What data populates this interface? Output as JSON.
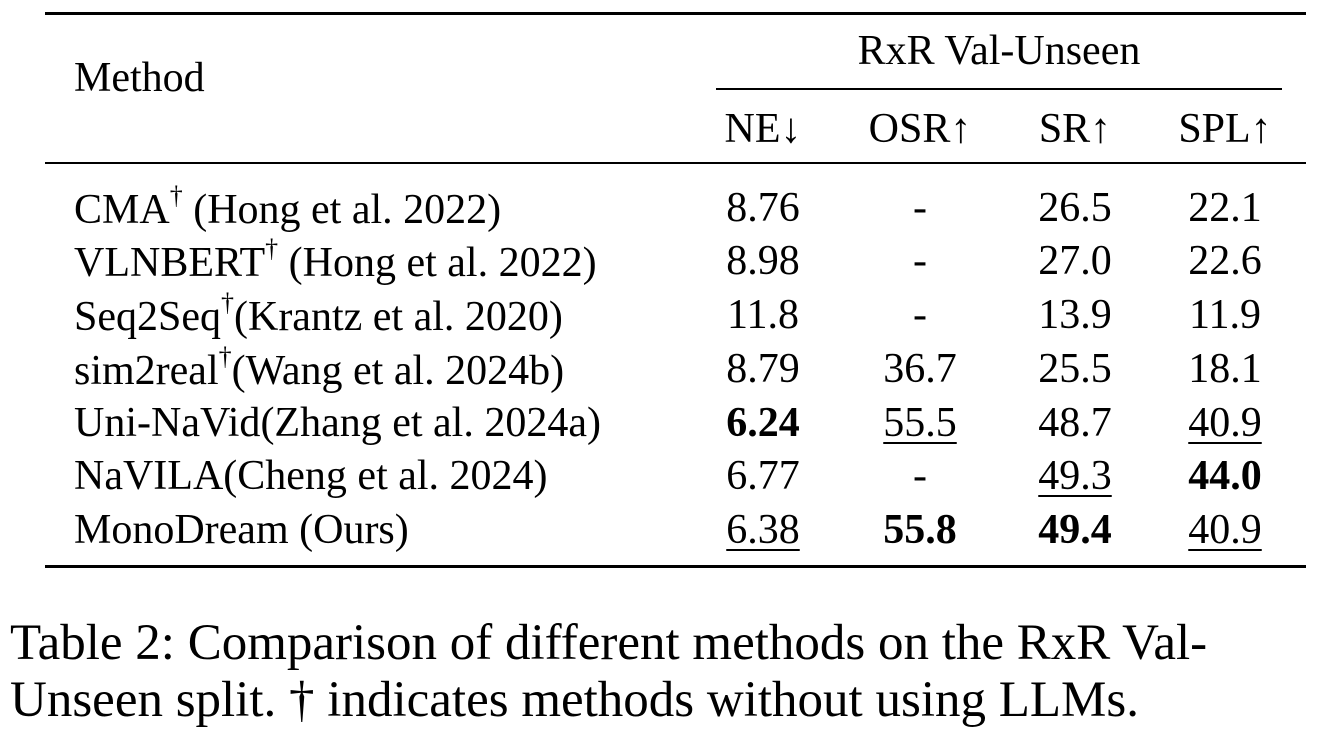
{
  "table": {
    "method_header": "Method",
    "group_header": "RxR Val-Unseen",
    "columns": [
      "NE↓",
      "OSR↑",
      "SR↑",
      "SPL↑"
    ],
    "rows": [
      {
        "method": "CMA",
        "dagger": "†",
        "cite": " (Hong et al. 2022)",
        "values": [
          "8.76",
          "-",
          "26.5",
          "22.1"
        ],
        "styles": [
          "",
          "",
          "",
          ""
        ]
      },
      {
        "method": "VLNBERT",
        "dagger": "†",
        "cite": " (Hong et al. 2022)",
        "values": [
          "8.98",
          "-",
          "27.0",
          "22.6"
        ],
        "styles": [
          "",
          "",
          "",
          ""
        ]
      },
      {
        "method": "Seq2Seq",
        "dagger": "†",
        "cite": "(Krantz et al. 2020)",
        "values": [
          "11.8",
          "-",
          "13.9",
          "11.9"
        ],
        "styles": [
          "",
          "",
          "",
          ""
        ]
      },
      {
        "method": "sim2real",
        "dagger": "†",
        "cite": "(Wang et al. 2024b)",
        "values": [
          "8.79",
          "36.7",
          "25.5",
          "18.1"
        ],
        "styles": [
          "",
          "",
          "",
          ""
        ]
      },
      {
        "method": "Uni-NaVid",
        "dagger": "",
        "cite": "(Zhang et al. 2024a)",
        "values": [
          "6.24",
          "55.5",
          "48.7",
          "40.9"
        ],
        "styles": [
          "bold",
          "underline",
          "",
          "underline"
        ]
      },
      {
        "method": "NaVILA",
        "dagger": "",
        "cite": "(Cheng et al. 2024)",
        "values": [
          "6.77",
          "-",
          "49.3",
          "44.0"
        ],
        "styles": [
          "",
          "",
          "underline",
          "bold"
        ]
      },
      {
        "method": "MonoDream",
        "dagger": "",
        "cite": " (Ours)",
        "values": [
          "6.38",
          "55.8",
          "49.4",
          "40.9"
        ],
        "styles": [
          "underline",
          "bold",
          "bold",
          "underline"
        ]
      }
    ]
  },
  "caption": {
    "line1": "Table 2: Comparison of different methods on the RxR Val-",
    "line2": "Unseen split. † indicates methods without using LLMs."
  }
}
